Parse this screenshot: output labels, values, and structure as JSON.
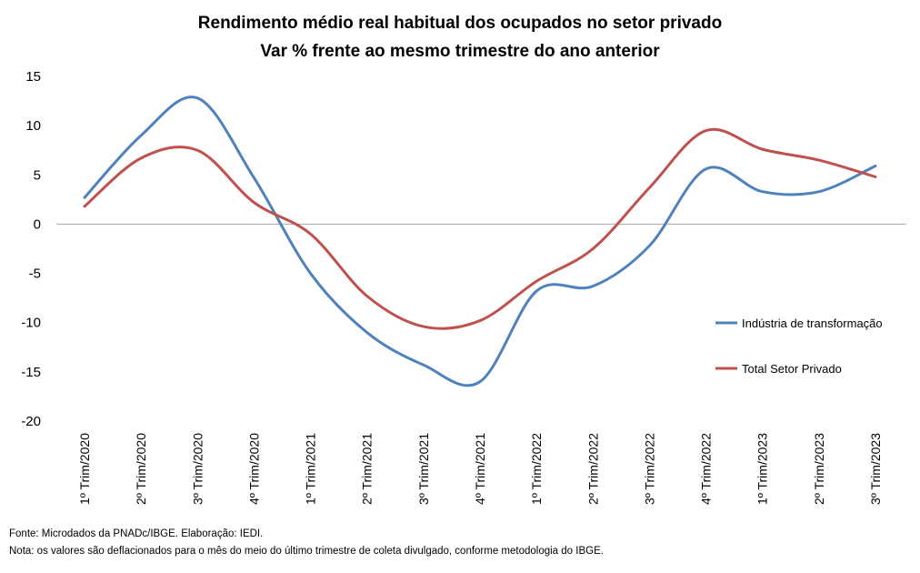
{
  "chart_data": {
    "type": "line",
    "title_line1": "Rendimento médio real habitual dos ocupados no setor privado",
    "title_line2": "Var %  frente ao mesmo trimestre do ano anterior",
    "categories": [
      "1º Trim/2020",
      "2º Trim/2020",
      "3º Trim/2020",
      "4º Trim/2020",
      "1º Trim/2021",
      "2º Trim/2021",
      "3º Trim/2021",
      "4º Trim/2021",
      "1º Trim/2022",
      "2º Trim/2022",
      "3º Trim/2022",
      "4º Trim/2022",
      "1º Trim/2023",
      "2º Trim/2023",
      "3º Trim/2023"
    ],
    "yticks": [
      15,
      10,
      5,
      0,
      -5,
      -10,
      -15,
      -20
    ],
    "ylim": [
      -20,
      15
    ],
    "series": [
      {
        "name": "Indústria de transformação",
        "color": "#4f81bd",
        "values": [
          2.7,
          9.0,
          12.8,
          4.7,
          -5.0,
          -11.0,
          -14.3,
          -16.0,
          -6.8,
          -6.3,
          -2.2,
          5.6,
          3.3,
          3.3,
          5.9
        ]
      },
      {
        "name": "Total Setor Privado",
        "color": "#c0504d",
        "values": [
          1.8,
          6.7,
          7.5,
          2.2,
          -1.0,
          -7.3,
          -10.4,
          -9.8,
          -5.8,
          -2.5,
          3.7,
          9.5,
          7.6,
          6.5,
          4.8
        ]
      }
    ],
    "legend_position": "right",
    "grid": false
  },
  "footnotes": {
    "source": "Fonte: Microdados da PNADc/IBGE. Elaboração: IEDI.",
    "note": "Nota: os valores são deflacionados para o mês do meio do último trimestre de coleta divulgado, conforme metodologia do IBGE."
  }
}
